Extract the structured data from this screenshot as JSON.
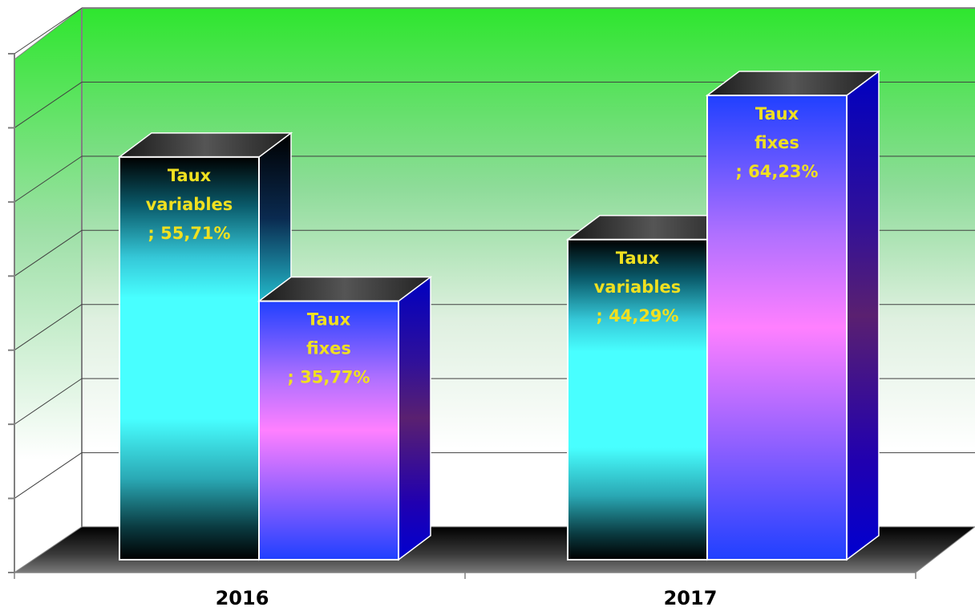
{
  "chart_data": {
    "type": "bar",
    "categories": [
      "2016",
      "2017"
    ],
    "series": [
      {
        "name": "Taux variables",
        "values": [
          55.71,
          44.29
        ],
        "labels": [
          [
            "Taux",
            "variables",
            "; 55,71%"
          ],
          [
            "Taux",
            "variables",
            "; 44,29%"
          ]
        ]
      },
      {
        "name": "Taux fixes",
        "values": [
          35.77,
          64.23
        ],
        "labels": [
          [
            "Taux",
            "fixes",
            "; 35,77%"
          ],
          [
            "Taux",
            "fixes",
            "; 64,23%"
          ]
        ]
      }
    ],
    "ylim": [
      0,
      70
    ],
    "grid": true,
    "title": "",
    "xlabel": "",
    "ylabel": "",
    "colors": {
      "taux_variables": [
        "#000000",
        "#48ffff"
      ],
      "taux_fixes": [
        "#2040ff",
        "#ff80ff"
      ],
      "wall_top": "#2ee62e",
      "wall_bottom": "#ffffff",
      "floor": "#000000",
      "label_text": "#f0e020"
    }
  }
}
